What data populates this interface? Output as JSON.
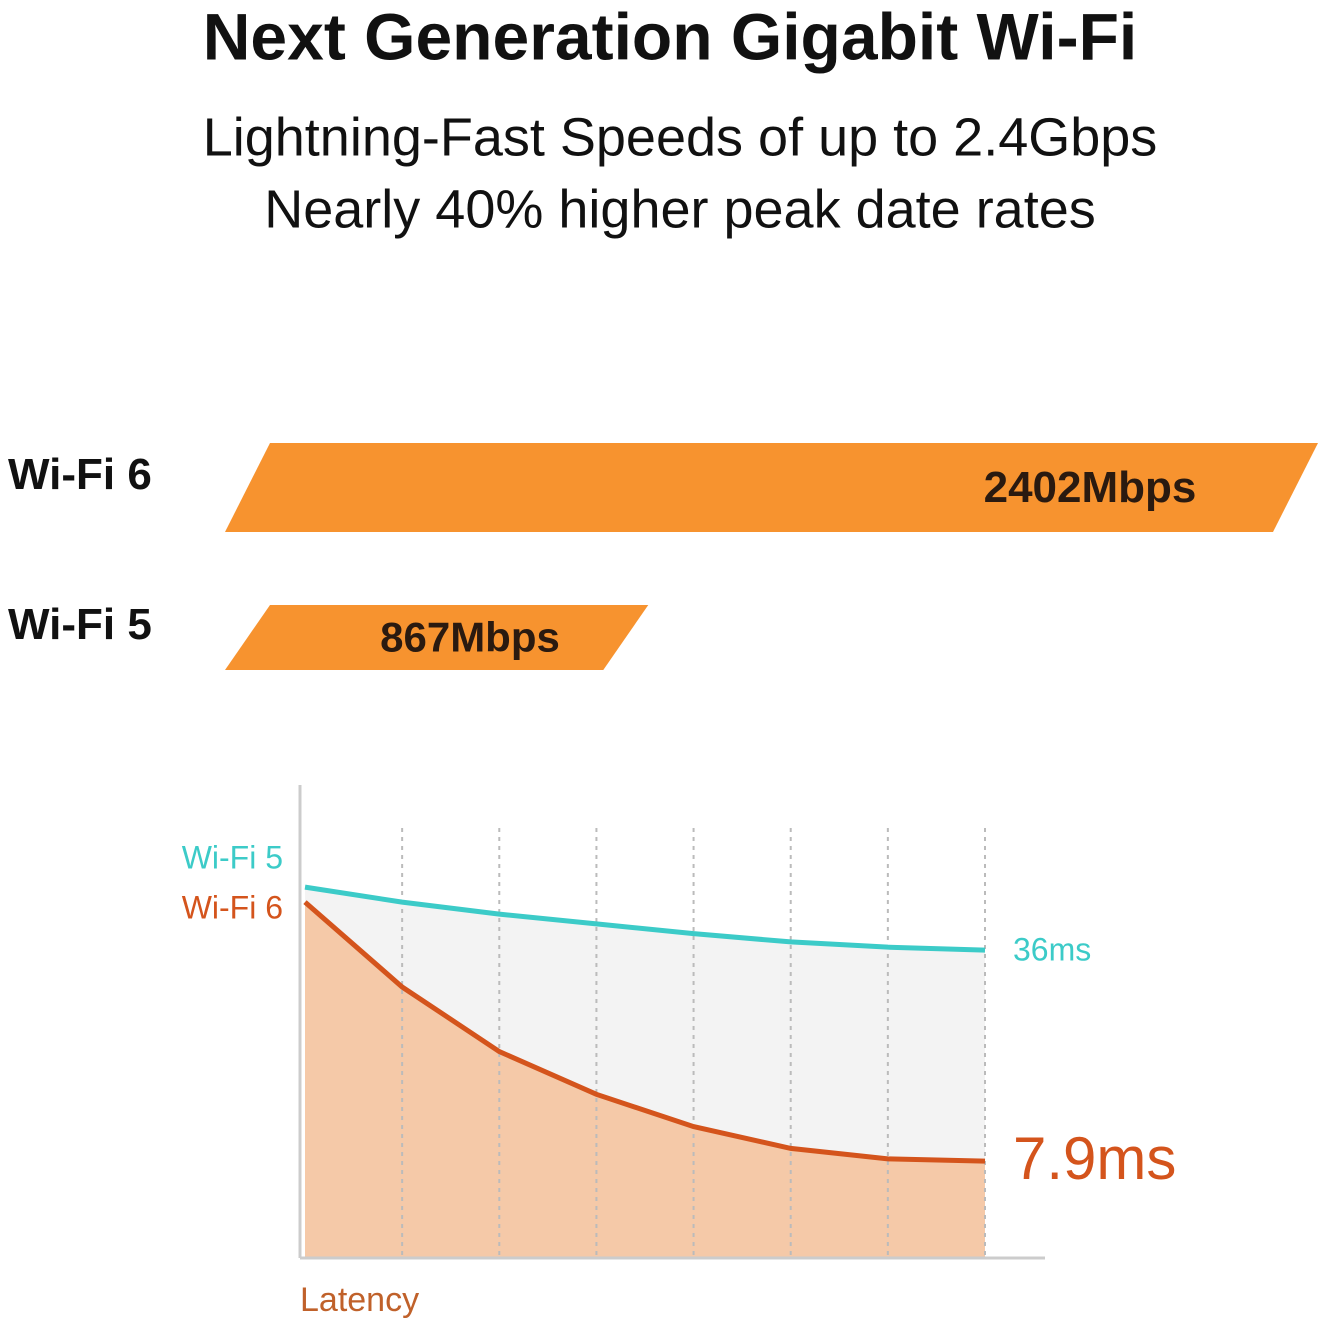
{
  "header": {
    "title": "Next Generation Gigabit Wi-Fi",
    "subtitle": [
      "Lightning-Fast Speeds of up to 2.4Gbps",
      "Nearly 40% higher peak date rates"
    ]
  },
  "chart_data": [
    {
      "type": "hbar",
      "categories": [
        "Wi-Fi 6",
        "Wi-Fi 5"
      ],
      "values": [
        2402,
        867
      ],
      "value_labels": [
        "2402Mbps",
        "867Mbps"
      ],
      "color": "#f7932f",
      "xlim": [
        0,
        2402
      ]
    },
    {
      "type": "line",
      "xlabel": "Latency",
      "x": [
        0,
        1,
        2,
        3,
        4,
        5,
        6,
        7
      ],
      "xlim": [
        0,
        7
      ],
      "ylim": [
        -5,
        58
      ],
      "grid": true,
      "series": [
        {
          "name": "Wi-Fi 5",
          "color": "#3ccbc8",
          "values": [
            44.4,
            42.4,
            40.8,
            39.5,
            38.2,
            37.1,
            36.4,
            36
          ],
          "value_labels": [
            null,
            null,
            null,
            null,
            null,
            null,
            null,
            "36ms"
          ]
        },
        {
          "name": "Wi-Fi 6",
          "color": "#d4541c",
          "values": [
            42.4,
            31.1,
            22.5,
            16.8,
            12.5,
            9.6,
            8.2,
            7.9
          ],
          "value_labels": [
            null,
            null,
            null,
            null,
            null,
            null,
            null,
            "7.9ms"
          ]
        }
      ]
    }
  ]
}
